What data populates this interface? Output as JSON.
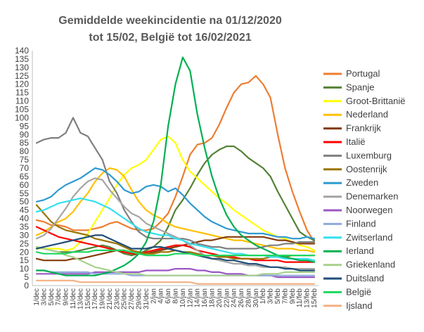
{
  "chart_data": {
    "type": "line",
    "title_lines": [
      "Gemiddelde weekincidentie  na 01/12/2020",
      "tot 15/02, België tot 16/02/2021"
    ],
    "ylim": [
      0,
      140
    ],
    "ytick_step": 5,
    "grid": false,
    "legend_position": "right",
    "x": [
      "1/dec",
      "3/dec",
      "5/dec",
      "7/dec",
      "9/dec",
      "11/dec",
      "13/dec",
      "15/dec",
      "17/dec",
      "19/dec",
      "21/dec",
      "23/dec",
      "25/dec",
      "27/dec",
      "29/dec",
      "31/dec",
      "2/jan",
      "4/jan",
      "6/jan",
      "8/jan",
      "10/jan",
      "12/jan",
      "14/jan",
      "16/jan",
      "18/jan",
      "20/jan",
      "22/jan",
      "24/jan",
      "26/jan",
      "28/jan",
      "30/jan",
      "1/feb",
      "3/feb",
      "5/feb",
      "7/feb",
      "9/feb",
      "11/feb",
      "13/feb",
      "15/feb"
    ],
    "series": [
      {
        "name": "Portugal",
        "color": "#ED7D31",
        "values": [
          39,
          38,
          36,
          36,
          35,
          33,
          33,
          33,
          34,
          35,
          37,
          38,
          36,
          34,
          33,
          33,
          34,
          38,
          43,
          53,
          65,
          78,
          84,
          85,
          88,
          96,
          106,
          115,
          120,
          121,
          125,
          120,
          112,
          90,
          70,
          56,
          44,
          33,
          26
        ]
      },
      {
        "name": "Spanje",
        "color": "#548235",
        "values": [
          23,
          22,
          21,
          20,
          20,
          20,
          21,
          22,
          23,
          24,
          23,
          21,
          19,
          18,
          19,
          21,
          23,
          27,
          35,
          45,
          51,
          58,
          66,
          73,
          78,
          81,
          83,
          83,
          80,
          76,
          73,
          70,
          65,
          56,
          48,
          40,
          32,
          29,
          27
        ]
      },
      {
        "name": "Groot-Brittanië",
        "color": "#FFFF00",
        "values": [
          22,
          22,
          22,
          22,
          21,
          22,
          26,
          31,
          38,
          45,
          52,
          60,
          66,
          70,
          72,
          75,
          81,
          87,
          89,
          85,
          75,
          68,
          64,
          60,
          56,
          52,
          49,
          45,
          42,
          39,
          36,
          33,
          31,
          29,
          28,
          26,
          24,
          23,
          21
        ]
      },
      {
        "name": "Nederland",
        "color": "#FFC000",
        "values": [
          30,
          32,
          35,
          38,
          40,
          44,
          50,
          55,
          62,
          67,
          70,
          69,
          65,
          57,
          50,
          45,
          42,
          40,
          37,
          35,
          34,
          33,
          32,
          31,
          30,
          29,
          28,
          27,
          27,
          26,
          25,
          24,
          23,
          22,
          22,
          22,
          21,
          21,
          20
        ]
      },
      {
        "name": "Frankrijk",
        "color": "#843C0C",
        "values": [
          16,
          15,
          15,
          15,
          15,
          16,
          16,
          17,
          18,
          19,
          20,
          21,
          21,
          20,
          19,
          19,
          20,
          21,
          22,
          23,
          24,
          25,
          26,
          27,
          27,
          28,
          29,
          29,
          29,
          29,
          29,
          29,
          28,
          27,
          27,
          26,
          25,
          25,
          25
        ]
      },
      {
        "name": "Italië",
        "color": "#FF0000",
        "values": [
          35,
          33,
          31,
          29,
          28,
          27,
          26,
          25,
          24,
          23,
          22,
          21,
          20,
          19,
          19,
          20,
          21,
          22,
          23,
          24,
          24,
          23,
          21,
          20,
          19,
          18,
          17,
          17,
          16,
          16,
          15,
          15,
          15,
          15,
          14,
          14,
          14,
          14,
          14
        ]
      },
      {
        "name": "Luxemburg",
        "color": "#7F7F7F",
        "values": [
          85,
          87,
          88,
          88,
          91,
          100,
          91,
          89,
          82,
          75,
          62,
          55,
          45,
          38,
          32,
          29,
          28,
          28,
          28,
          28,
          28,
          27,
          25,
          24,
          23,
          23,
          22,
          22,
          22,
          22,
          22,
          23,
          24,
          24,
          25,
          25,
          26,
          26,
          26
        ]
      },
      {
        "name": "Oostenrijk",
        "color": "#997300",
        "values": [
          48,
          43,
          38,
          35,
          33,
          32,
          31,
          30,
          28,
          27,
          26,
          25,
          23,
          21,
          20,
          19,
          19,
          20,
          20,
          21,
          20,
          20,
          19,
          18,
          18,
          17,
          17,
          16,
          16,
          16,
          16,
          16,
          17,
          17,
          17,
          18,
          18,
          18,
          18
        ]
      },
      {
        "name": "Zweden",
        "color": "#2E9AD0",
        "values": [
          50,
          51,
          53,
          57,
          60,
          62,
          64,
          67,
          70,
          69,
          66,
          62,
          57,
          55,
          56,
          59,
          60,
          59,
          56,
          58,
          54,
          49,
          45,
          41,
          38,
          36,
          34,
          33,
          32,
          31,
          31,
          31,
          30,
          29,
          29,
          28,
          28,
          29,
          28
        ]
      },
      {
        "name": "Denemarken",
        "color": "#A5A5A5",
        "values": [
          28,
          30,
          34,
          40,
          46,
          53,
          58,
          62,
          64,
          63,
          57,
          52,
          47,
          43,
          41,
          37,
          35,
          33,
          31,
          29,
          27,
          24,
          21,
          18,
          16,
          15,
          14,
          13,
          13,
          12,
          12,
          11,
          11,
          11,
          11,
          10,
          10,
          10,
          10
        ]
      },
      {
        "name": "Noorwegen",
        "color": "#9A58C6",
        "values": [
          7,
          7,
          7,
          7,
          7,
          7,
          7,
          7,
          8,
          8,
          8,
          8,
          8,
          8,
          8,
          9,
          9,
          9,
          9,
          10,
          10,
          10,
          9,
          9,
          8,
          8,
          7,
          7,
          7,
          6,
          6,
          6,
          6,
          5,
          5,
          5,
          5,
          5,
          5
        ]
      },
      {
        "name": "Finland",
        "color": "#8FAADC",
        "values": [
          9,
          9,
          8,
          8,
          8,
          8,
          8,
          8,
          7,
          7,
          7,
          7,
          7,
          6,
          6,
          6,
          6,
          6,
          6,
          6,
          6,
          6,
          6,
          6,
          6,
          6,
          6,
          6,
          6,
          6,
          6,
          6,
          6,
          6,
          6,
          6,
          6,
          6,
          6
        ]
      },
      {
        "name": "Zwitserland",
        "color": "#33E0F0",
        "values": [
          44,
          45,
          47,
          49,
          50,
          51,
          52,
          51,
          50,
          48,
          46,
          43,
          40,
          37,
          34,
          32,
          31,
          30,
          30,
          28,
          27,
          25,
          24,
          23,
          22,
          21,
          20,
          19,
          19,
          18,
          18,
          18,
          17,
          17,
          16,
          16,
          16,
          16,
          15
        ]
      },
      {
        "name": "Ierland",
        "color": "#00B050",
        "values": [
          9,
          9,
          8,
          7,
          6,
          6,
          6,
          6,
          6,
          7,
          8,
          10,
          12,
          15,
          19,
          26,
          38,
          60,
          95,
          120,
          136,
          128,
          102,
          82,
          65,
          52,
          42,
          35,
          30,
          27,
          24,
          22,
          20,
          18,
          17,
          16,
          15,
          15,
          14
        ]
      },
      {
        "name": "Griekenland",
        "color": "#A9D18E",
        "values": [
          23,
          22,
          21,
          20,
          18,
          17,
          15,
          13,
          11,
          10,
          9,
          8,
          7,
          7,
          7,
          6,
          6,
          6,
          6,
          6,
          6,
          6,
          6,
          6,
          6,
          6,
          6,
          6,
          6,
          6,
          6,
          7,
          7,
          7,
          8,
          8,
          8,
          8,
          8
        ]
      },
      {
        "name": "Duitsland",
        "color": "#1F4E79",
        "values": [
          22,
          23,
          24,
          25,
          26,
          27,
          28,
          29,
          30,
          30,
          28,
          26,
          24,
          22,
          22,
          22,
          23,
          23,
          22,
          21,
          20,
          19,
          18,
          17,
          16,
          16,
          15,
          15,
          14,
          13,
          13,
          12,
          11,
          11,
          10,
          10,
          9,
          9,
          9
        ]
      },
      {
        "name": "België",
        "color": "#1ED760",
        "values": [
          20,
          19,
          19,
          19,
          19,
          20,
          20,
          20,
          21,
          21,
          21,
          21,
          21,
          20,
          19,
          18,
          18,
          18,
          18,
          19,
          19,
          19,
          18,
          18,
          18,
          18,
          18,
          18,
          18,
          18,
          18,
          18,
          18,
          18,
          18,
          18,
          18,
          18,
          18
        ]
      },
      {
        "name": "Ijsland",
        "color": "#F4B183",
        "values": [
          3,
          3,
          3,
          3,
          3,
          3,
          2,
          2,
          2,
          2,
          2,
          2,
          2,
          2,
          2,
          2,
          2,
          2,
          2,
          2,
          2,
          2,
          1,
          1,
          1,
          1,
          1,
          1,
          1,
          1,
          1,
          1,
          1,
          1,
          1,
          1,
          1,
          1,
          1
        ]
      }
    ]
  }
}
